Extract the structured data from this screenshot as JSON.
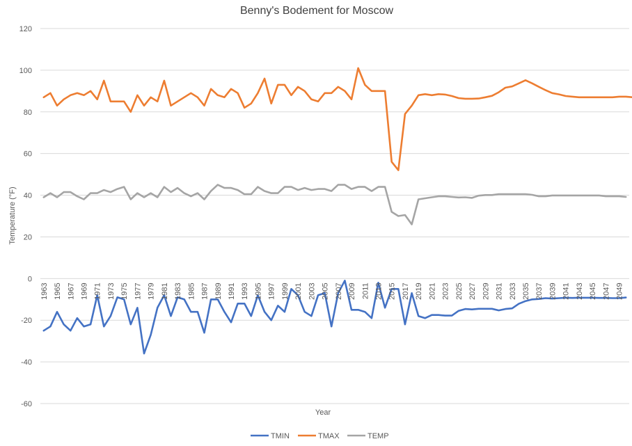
{
  "chart_data": {
    "type": "line",
    "title": "Benny's Bodement for Moscow",
    "xlabel": "Year",
    "ylabel": "Temperature (°F)",
    "ylim": [
      -60,
      120
    ],
    "yticks": [
      -60,
      -40,
      -20,
      0,
      20,
      40,
      60,
      80,
      100,
      120
    ],
    "grid": true,
    "legend_position": "bottom",
    "x_start": 1963,
    "x_end": 2050,
    "x_tick_labels": [
      "1963",
      "1965",
      "1967",
      "1969",
      "1971",
      "1973",
      "1975",
      "1977",
      "1979",
      "1981",
      "1983",
      "1985",
      "1987",
      "1989",
      "1991",
      "1993",
      "1995",
      "1997",
      "1999",
      "2001",
      "2003",
      "2005",
      "2007",
      "2009",
      "2011",
      "2013",
      "2015",
      "2017",
      "2019",
      "2021",
      "2023",
      "2025",
      "2027",
      "2029",
      "2031",
      "2033",
      "2035",
      "2037",
      "2039",
      "2041",
      "2043",
      "2045",
      "2047",
      "2049"
    ],
    "series": [
      {
        "name": "TMIN",
        "color": "#4472c4",
        "values": [
          -25,
          -23,
          -16,
          -22,
          -25,
          -19,
          -23,
          -22,
          -8,
          -23,
          -18,
          -9,
          -10,
          -22,
          -14,
          -36,
          -27,
          -14,
          -8,
          -18,
          -9,
          -10,
          -16,
          -16,
          -26,
          -10,
          -10,
          -16,
          -21,
          -12,
          -12,
          -18,
          -8,
          -16,
          -20,
          -13,
          -16,
          -5,
          -8,
          -16,
          -18,
          -8,
          -7,
          -23,
          -7,
          -1,
          -15,
          -15,
          -16,
          -19,
          -2,
          -14,
          -5,
          -5,
          -22,
          -7,
          -18,
          -19,
          -17.5,
          -17.5,
          -17.8,
          -17.8,
          -15.5,
          -14.6,
          -14.8,
          -14.5,
          -14.5,
          -14.5,
          -15.3,
          -14.6,
          -14.3,
          -12.1,
          -10.8,
          -10,
          -9.8,
          -9.4,
          -9.6,
          -9.4,
          -9.2,
          -9.3,
          -9.2,
          -9.2,
          -9.2,
          -9.3,
          -9.3,
          -9.4,
          -9.4,
          -9.1
        ]
      },
      {
        "name": "TMAX",
        "color": "#ed7d31",
        "values": [
          87,
          89,
          83,
          86,
          88,
          89,
          88,
          90,
          86,
          95,
          85,
          85,
          85,
          80,
          88,
          83,
          87,
          85,
          95,
          83,
          85,
          87,
          89,
          87,
          83,
          91,
          88,
          87,
          91,
          89,
          82,
          84,
          89,
          96,
          84,
          93,
          93,
          88,
          92,
          90,
          86,
          85,
          89,
          89,
          92,
          90,
          86,
          101,
          93,
          90,
          90,
          90,
          56,
          52,
          79,
          83,
          88,
          88.5,
          88,
          88.5,
          88.3,
          87.6,
          86.6,
          86.3,
          86.3,
          86.4,
          87,
          87.7,
          89.4,
          91.6,
          92.2,
          93.7,
          95.2,
          93.7,
          92,
          90.4,
          89,
          88.4,
          87.6,
          87.3,
          87,
          87,
          87,
          87,
          87,
          87,
          87.3,
          87.3,
          87
        ]
      },
      {
        "name": "TEMP",
        "color": "#a5a5a5",
        "values": [
          39,
          41,
          39,
          41.5,
          41.5,
          39.5,
          38,
          41,
          41,
          42.5,
          41.5,
          43,
          44,
          38,
          41,
          39,
          41,
          39,
          44,
          41.5,
          43.5,
          41,
          39.5,
          41,
          38,
          42,
          45,
          43.5,
          43.5,
          42.5,
          40.5,
          40.5,
          44,
          42,
          41,
          41,
          44,
          44,
          42.5,
          43.5,
          42.5,
          43,
          43,
          42,
          45,
          45,
          43,
          44,
          44,
          42,
          44,
          44,
          32,
          30,
          30.5,
          26,
          38,
          38.5,
          39,
          39.5,
          39.5,
          39.2,
          38.9,
          39,
          38.7,
          39.8,
          40.1,
          40.1,
          40.5,
          40.5,
          40.5,
          40.5,
          40.5,
          40.2,
          39.5,
          39.5,
          39.9,
          39.9,
          39.9,
          39.9,
          39.9,
          39.9,
          39.9,
          39.9,
          39.5,
          39.5,
          39.5,
          39.2
        ]
      }
    ]
  }
}
